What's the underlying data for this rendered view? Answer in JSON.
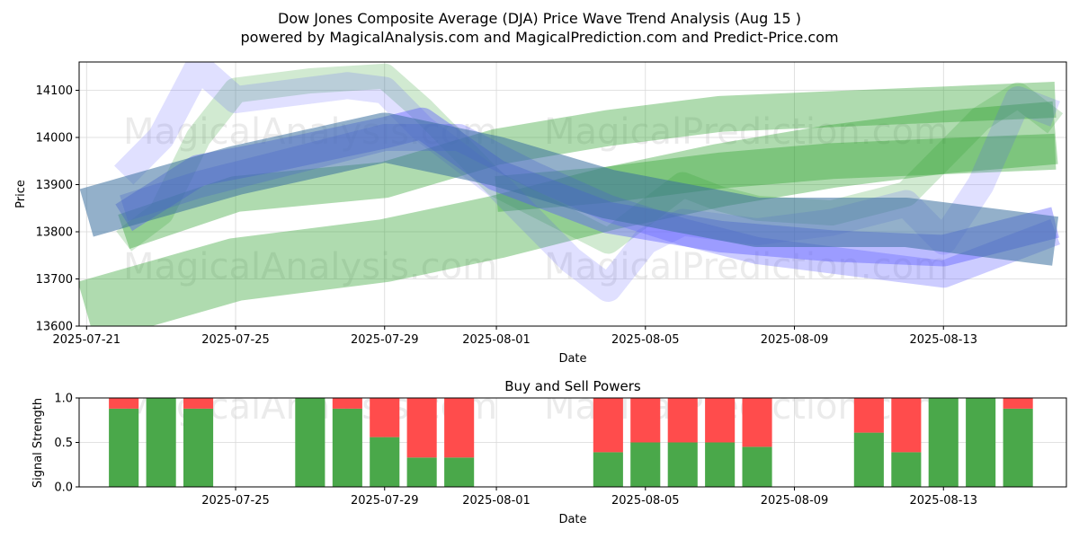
{
  "title_line1": "Dow Jones Composite Average (DJA) Price Wave Trend Analysis (Aug 15 )",
  "title_line2": "powered by MagicalAnalysis.com and MagicalPrediction.com and Predict-Price.com",
  "watermarks": [
    "MagicalAnalysis.com",
    "MagicalPrediction.com",
    "MagicalAnalysis.com",
    "MagicalPrediction.com",
    "MagicalAnalysis.com",
    "MagicalPrediction.com"
  ],
  "colors": {
    "green": "#2ca02c",
    "blue": "#5555ff",
    "steel": "#3a6f9f",
    "buy": "#4aa84a",
    "sell": "#ff4c4c"
  },
  "chart_data": [
    {
      "type": "area",
      "title": "",
      "xlabel": "Date",
      "ylabel": "Price",
      "ylim": [
        13600,
        14160
      ],
      "x_ticks": [
        "2025-07-21",
        "2025-07-25",
        "2025-07-29",
        "2025-08-01",
        "2025-08-05",
        "2025-08-09",
        "2025-08-13"
      ],
      "x_tick_days": [
        0,
        4,
        8,
        11,
        15,
        19,
        23
      ],
      "y_ticks": [
        13600,
        13700,
        13800,
        13900,
        14000,
        14100
      ],
      "xlim_days": [
        -0.2,
        26.3
      ],
      "series": [
        {
          "name": "green wave long",
          "color": "green",
          "opacity": 0.38,
          "width": 70,
          "x": [
            0,
            4,
            8,
            11,
            14,
            17,
            20,
            23,
            26
          ],
          "y": [
            13630,
            13720,
            13760,
            13810,
            13870,
            13920,
            13960,
            13990,
            14010
          ]
        },
        {
          "name": "green wave upper",
          "color": "green",
          "opacity": 0.38,
          "width": 40,
          "x": [
            1,
            4,
            8,
            11,
            14,
            17,
            20,
            23,
            26
          ],
          "y": [
            13800,
            13880,
            13910,
            13980,
            14020,
            14050,
            14060,
            14070,
            14080
          ]
        },
        {
          "name": "green wave lower",
          "color": "green",
          "opacity": 0.38,
          "width": 40,
          "x": [
            11,
            14,
            17,
            20,
            23,
            26
          ],
          "y": [
            13880,
            13900,
            13930,
            13950,
            13960,
            13970
          ]
        },
        {
          "name": "green zigzag",
          "color": "green",
          "opacity": 0.22,
          "width": 28,
          "x": [
            1,
            2,
            3,
            4,
            6,
            8,
            9,
            11,
            13,
            14,
            15,
            16,
            17,
            18,
            20,
            22,
            23,
            24,
            25,
            26
          ],
          "y": [
            13780,
            13840,
            14000,
            14100,
            14120,
            14130,
            14060,
            13900,
            13820,
            13780,
            13840,
            13900,
            13870,
            13850,
            13840,
            13880,
            13960,
            14040,
            14090,
            14030
          ]
        },
        {
          "name": "blue wave main",
          "color": "blue",
          "opacity": 0.4,
          "width": 35,
          "x": [
            1,
            3,
            5,
            8,
            9,
            11,
            14,
            17,
            20,
            23,
            26
          ],
          "y": [
            13830,
            13930,
            13960,
            14010,
            14030,
            13920,
            13830,
            13790,
            13770,
            13760,
            13820
          ]
        },
        {
          "name": "blue wave lower",
          "color": "blue",
          "opacity": 0.3,
          "width": 30,
          "x": [
            1,
            3,
            5,
            8,
            10,
            12,
            14,
            16,
            18,
            20,
            22,
            23,
            25,
            26
          ],
          "y": [
            13850,
            13900,
            13940,
            14000,
            14000,
            13920,
            13850,
            13800,
            13760,
            13740,
            13720,
            13710,
            13770,
            13800
          ]
        },
        {
          "name": "blue zigzag",
          "color": "blue",
          "opacity": 0.18,
          "width": 30,
          "x": [
            1,
            2,
            3,
            4,
            5,
            7,
            8,
            9,
            10,
            11,
            12,
            13,
            14,
            15,
            16,
            18,
            20,
            22,
            23,
            24,
            25,
            26
          ],
          "y": [
            13920,
            14000,
            14150,
            14080,
            14090,
            14110,
            14100,
            14020,
            13960,
            13900,
            13820,
            13740,
            13680,
            13780,
            13820,
            13800,
            13820,
            13860,
            13780,
            13900,
            14080,
            14050
          ]
        },
        {
          "name": "steel trend",
          "color": "steel",
          "opacity": 0.55,
          "width": 55,
          "x": [
            0,
            4,
            8,
            11,
            14,
            18,
            22,
            26
          ],
          "y": [
            13840,
            13930,
            14000,
            13950,
            13880,
            13820,
            13820,
            13780
          ]
        }
      ]
    },
    {
      "type": "bar",
      "title": "Buy and Sell Powers",
      "xlabel": "Date",
      "ylabel": "Signal Strength",
      "ylim": [
        0,
        1
      ],
      "y_ticks": [
        0.0,
        0.5,
        1.0
      ],
      "y_tick_labels": [
        "0.0",
        "0.5",
        "1.0"
      ],
      "x_ticks": [
        "2025-07-25",
        "2025-07-29",
        "2025-08-01",
        "2025-08-05",
        "2025-08-09",
        "2025-08-13"
      ],
      "x_tick_days": [
        4,
        8,
        11,
        15,
        19,
        23
      ],
      "xlim_days": [
        -0.2,
        26.3
      ],
      "series": [
        {
          "name": "Buy",
          "color": "buy",
          "days": [
            1,
            2,
            3,
            6,
            7,
            8,
            9,
            10,
            14,
            15,
            16,
            17,
            18,
            21,
            22,
            23,
            24,
            25
          ],
          "values": [
            0.88,
            1.0,
            0.88,
            1.0,
            0.88,
            0.56,
            0.33,
            0.33,
            0.39,
            0.5,
            0.5,
            0.5,
            0.45,
            0.61,
            0.39,
            1.0,
            1.0,
            0.88
          ]
        },
        {
          "name": "Sell",
          "color": "sell",
          "days": [
            1,
            2,
            3,
            6,
            7,
            8,
            9,
            10,
            14,
            15,
            16,
            17,
            18,
            21,
            22,
            23,
            24,
            25
          ],
          "values": [
            0.12,
            0.0,
            0.12,
            0.0,
            0.12,
            0.44,
            0.67,
            0.67,
            0.61,
            0.5,
            0.5,
            0.5,
            0.55,
            0.39,
            0.61,
            0.0,
            0.0,
            0.12
          ]
        }
      ]
    }
  ]
}
